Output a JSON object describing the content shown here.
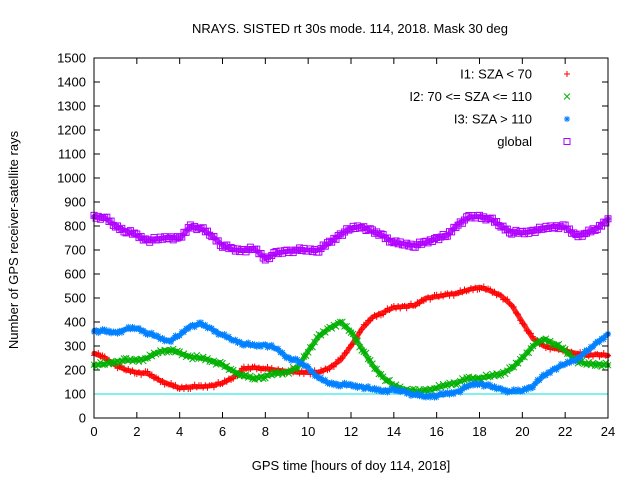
{
  "chart_data": {
    "type": "scatter",
    "title": "NRAYS. SISTED rt 30s mode. 114, 2018. Mask 30 deg",
    "xlabel": "GPS time [hours of doy 114, 2018]",
    "ylabel": "Number of GPS receiver-satellite rays",
    "xlim": [
      0,
      24
    ],
    "ylim": [
      0,
      1500
    ],
    "xticks": [
      0,
      2,
      4,
      6,
      8,
      10,
      12,
      14,
      16,
      18,
      20,
      22,
      24
    ],
    "yticks": [
      0,
      100,
      200,
      300,
      400,
      500,
      600,
      700,
      800,
      900,
      1000,
      1100,
      1200,
      1300,
      1400,
      1500
    ],
    "reference_line": {
      "y": 100,
      "color": "#00e0e0"
    },
    "legend_position": "top-right",
    "series": [
      {
        "name": "I1: SZA < 70",
        "color": "#ff0000",
        "marker": "plus",
        "x": [
          0,
          0.5,
          1,
          1.5,
          2,
          2.5,
          3,
          3.5,
          4,
          4.5,
          5,
          5.5,
          6,
          6.5,
          7,
          7.5,
          8,
          8.5,
          9,
          9.5,
          10,
          10.5,
          11,
          11.5,
          12,
          12.5,
          13,
          13.5,
          14,
          14.5,
          15,
          15.5,
          16,
          16.5,
          17,
          17.5,
          18,
          18.5,
          19,
          19.5,
          20,
          20.5,
          21,
          21.5,
          22,
          22.5,
          23,
          23.5,
          24
        ],
        "y": [
          270,
          250,
          220,
          200,
          190,
          185,
          160,
          140,
          125,
          130,
          130,
          135,
          145,
          170,
          205,
          210,
          205,
          200,
          195,
          190,
          190,
          190,
          210,
          240,
          300,
          370,
          420,
          440,
          460,
          465,
          470,
          500,
          505,
          515,
          520,
          535,
          545,
          530,
          510,
          470,
          400,
          330,
          300,
          290,
          280,
          270,
          260,
          265,
          260
        ]
      },
      {
        "name": "I2: 70 <= SZA <= 110",
        "color": "#00b000",
        "marker": "x",
        "x": [
          0,
          0.5,
          1,
          1.5,
          2,
          2.5,
          3,
          3.5,
          4,
          4.5,
          5,
          5.5,
          6,
          6.5,
          7,
          7.5,
          8,
          8.5,
          9,
          9.5,
          10,
          10.5,
          11,
          11.5,
          12,
          12.5,
          13,
          13.5,
          14,
          14.5,
          15,
          15.5,
          16,
          16.5,
          17,
          17.5,
          18,
          18.5,
          19,
          19.5,
          20,
          20.5,
          21,
          21.5,
          22,
          22.5,
          23,
          23.5,
          24
        ],
        "y": [
          220,
          225,
          235,
          240,
          240,
          250,
          275,
          285,
          270,
          255,
          250,
          240,
          220,
          195,
          175,
          165,
          175,
          185,
          190,
          210,
          280,
          340,
          375,
          400,
          360,
          290,
          220,
          170,
          135,
          120,
          110,
          115,
          125,
          140,
          150,
          165,
          165,
          175,
          185,
          205,
          250,
          300,
          330,
          310,
          280,
          240,
          225,
          225,
          220
        ]
      },
      {
        "name": "I3: SZA > 110",
        "color": "#0080ff",
        "marker": "star",
        "x": [
          0,
          0.5,
          1,
          1.5,
          2,
          2.5,
          3,
          3.5,
          4,
          4.5,
          5,
          5.5,
          6,
          6.5,
          7,
          7.5,
          8,
          8.5,
          9,
          9.5,
          10,
          10.5,
          11,
          11.5,
          12,
          12.5,
          13,
          13.5,
          14,
          14.5,
          15,
          15.5,
          16,
          16.5,
          17,
          17.5,
          18,
          18.5,
          19,
          19.5,
          20,
          20.5,
          21,
          21.5,
          22,
          22.5,
          23,
          23.5,
          24
        ],
        "y": [
          365,
          360,
          355,
          370,
          375,
          355,
          335,
          320,
          345,
          385,
          390,
          370,
          345,
          325,
          310,
          300,
          305,
          290,
          255,
          235,
          210,
          165,
          145,
          140,
          135,
          130,
          120,
          115,
          115,
          110,
          95,
          90,
          95,
          100,
          110,
          135,
          145,
          130,
          120,
          110,
          115,
          135,
          175,
          205,
          225,
          245,
          275,
          315,
          350
        ]
      },
      {
        "name": "global",
        "color": "#b000ff",
        "marker": "square",
        "x": [
          0,
          0.5,
          1,
          1.5,
          2,
          2.5,
          3,
          3.5,
          4,
          4.5,
          5,
          5.5,
          6,
          6.5,
          7,
          7.5,
          8,
          8.5,
          9,
          9.5,
          10,
          10.5,
          11,
          11.5,
          12,
          12.5,
          13,
          13.5,
          14,
          14.5,
          15,
          15.5,
          16,
          16.5,
          17,
          17.5,
          18,
          18.5,
          19,
          19.5,
          20,
          20.5,
          21,
          21.5,
          22,
          22.5,
          23,
          23.5,
          24
        ],
        "y": [
          840,
          835,
          800,
          780,
          760,
          740,
          745,
          755,
          745,
          800,
          790,
          760,
          720,
          700,
          700,
          705,
          665,
          685,
          695,
          700,
          700,
          700,
          730,
          765,
          790,
          800,
          775,
          760,
          730,
          725,
          720,
          730,
          750,
          760,
          810,
          835,
          840,
          830,
          800,
          775,
          770,
          780,
          790,
          800,
          795,
          760,
          770,
          790,
          830
        ]
      }
    ]
  }
}
